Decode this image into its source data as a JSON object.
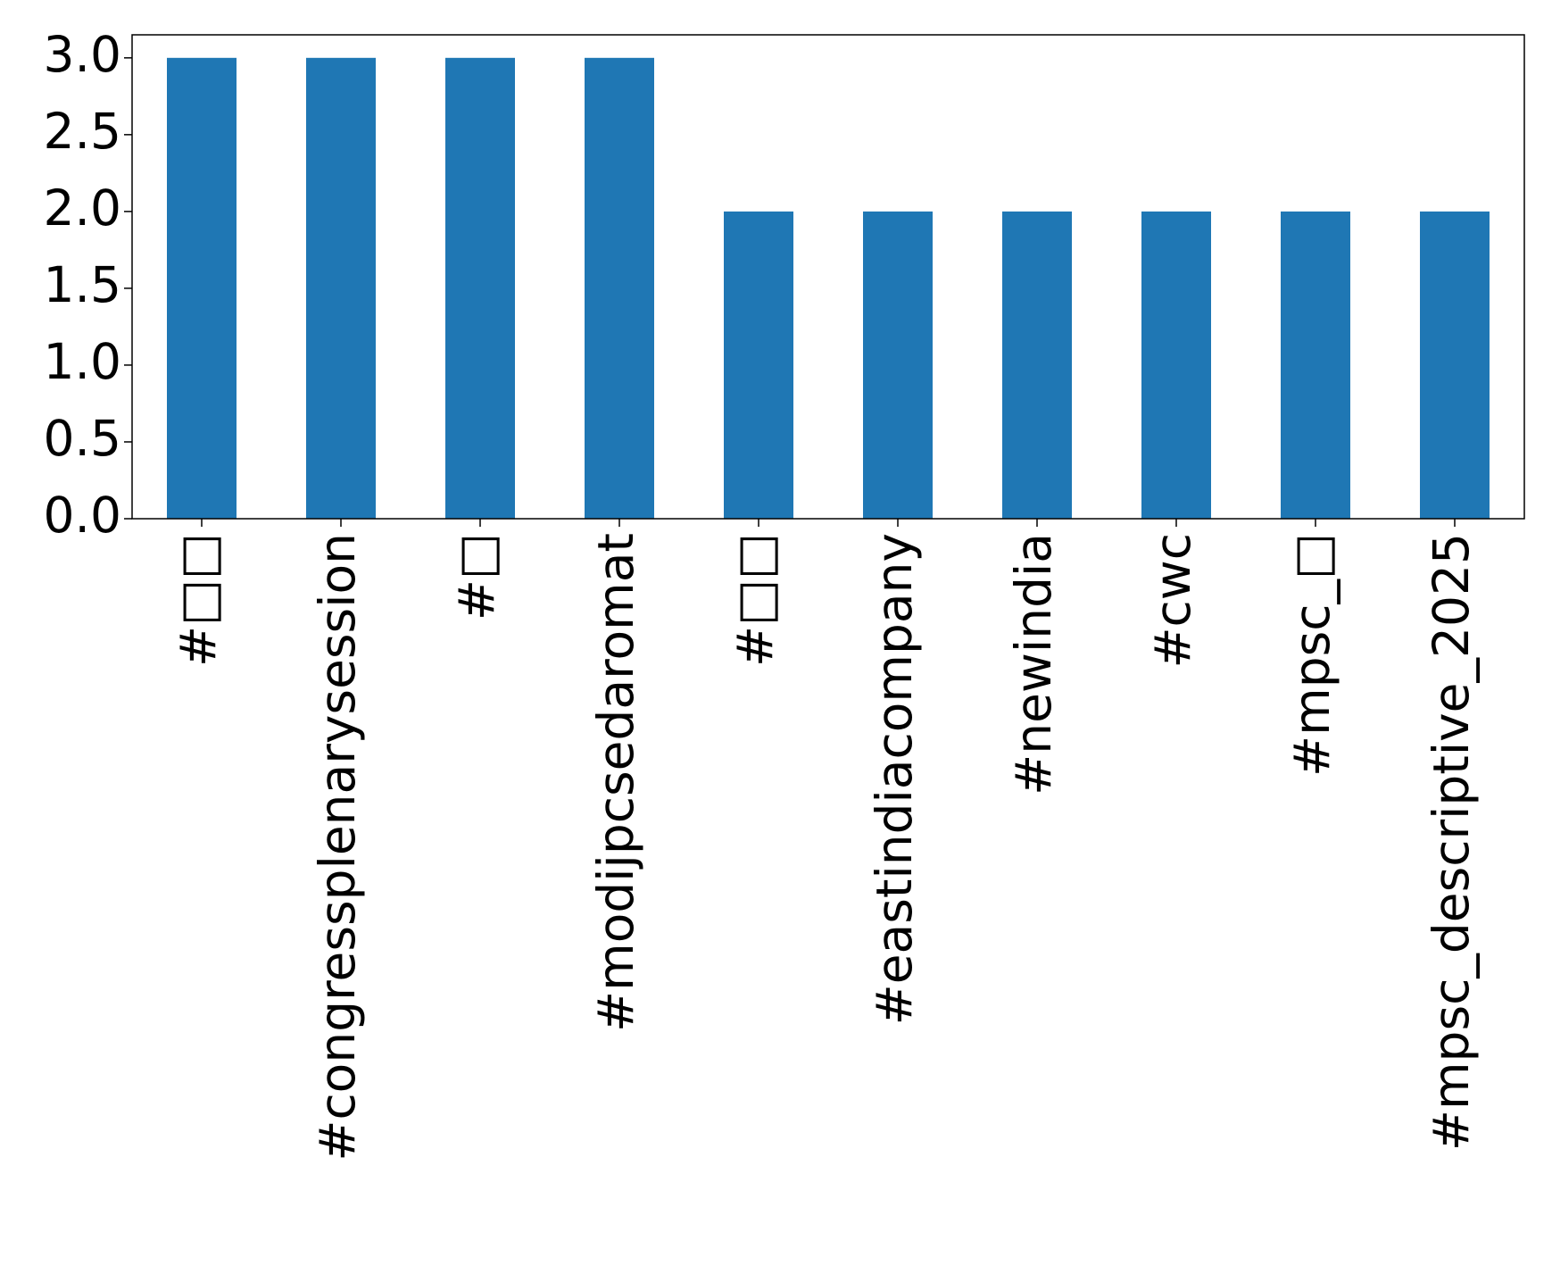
{
  "chart_data": {
    "type": "bar",
    "categories": [
      "#□□",
      "#congressplenarysession",
      "#□",
      "#modijpcsedaromat",
      "#□□",
      "#eastindiacompany",
      "#newindia",
      "#cwc",
      "#mpsc_□",
      "#mpsc_descriptive_2025"
    ],
    "values": [
      3,
      3,
      3,
      3,
      2,
      2,
      2,
      2,
      2,
      2
    ],
    "color": "#1f77b4",
    "ylim": [
      0,
      3.15
    ],
    "yticks": [
      {
        "value": 0,
        "label": "0.0"
      },
      {
        "value": 0.5,
        "label": "0.5"
      },
      {
        "value": 1,
        "label": "1.0"
      },
      {
        "value": 1.5,
        "label": "1.5"
      },
      {
        "value": 2,
        "label": "2.0"
      },
      {
        "value": 2.5,
        "label": "2.5"
      },
      {
        "value": 3,
        "label": "3.0"
      }
    ],
    "grid": false
  }
}
